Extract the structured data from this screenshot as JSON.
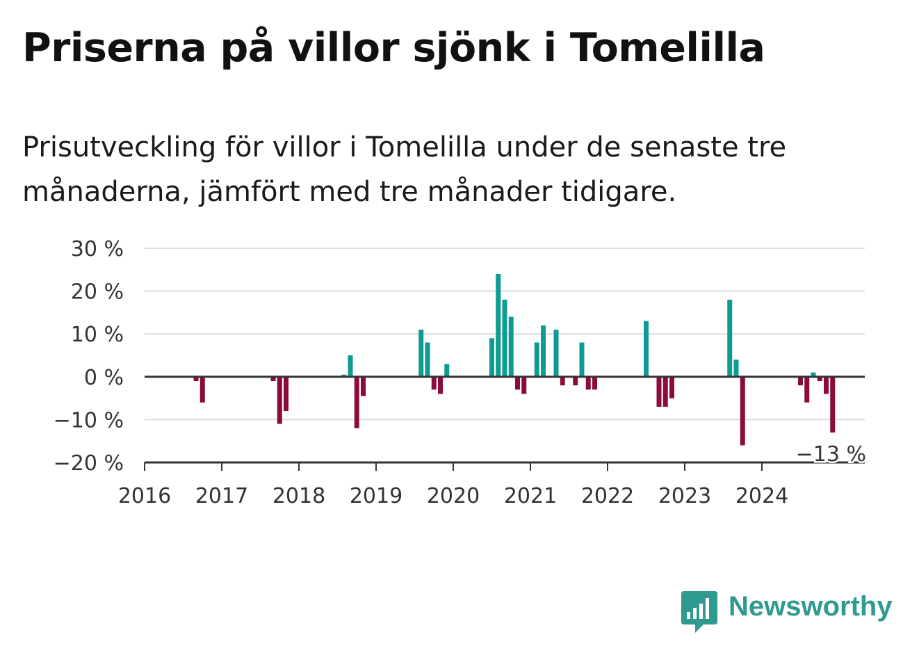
{
  "title": "Priserna på villor sjönk i Tomelilla",
  "subtitle": "Prisutveckling för villor i Tomelilla under de senaste tre månaderna, jämfört med tre månader tidigare.",
  "logo_text": "Newsworthy",
  "colors": {
    "positive": "#0d9b92",
    "negative": "#8c0a3c",
    "grid": "#dcdcdc",
    "axis": "#333333",
    "brand": "#2f9a8f"
  },
  "chart_data": {
    "type": "bar",
    "title": "Priserna på villor sjönk i Tomelilla",
    "ylabel": "",
    "xlabel": "",
    "ylim": [
      -20,
      30
    ],
    "y_ticks": [
      30,
      20,
      10,
      0,
      -10,
      -20
    ],
    "y_tick_labels": [
      "30 %",
      "20 %",
      "10 %",
      "0 %",
      "−10 %",
      "−20 %"
    ],
    "x_ticks": [
      "2016",
      "2017",
      "2018",
      "2019",
      "2020",
      "2021",
      "2022",
      "2023",
      "2024"
    ],
    "x_range": [
      "2016-01",
      "2025-05"
    ],
    "grid": true,
    "annotation": {
      "x": "2024-11",
      "value": -13,
      "text": "−13 %"
    },
    "x": [
      "2016-09",
      "2016-10",
      "2017-09",
      "2017-10",
      "2017-11",
      "2018-08",
      "2018-09",
      "2018-10",
      "2018-11",
      "2019-08",
      "2019-09",
      "2019-10",
      "2019-11",
      "2019-12",
      "2020-07",
      "2020-08",
      "2020-09",
      "2020-10",
      "2020-11",
      "2020-12",
      "2021-02",
      "2021-03",
      "2021-05",
      "2021-06",
      "2021-08",
      "2021-09",
      "2021-10",
      "2021-11",
      "2022-07",
      "2022-09",
      "2022-10",
      "2022-11",
      "2023-08",
      "2023-09",
      "2023-10",
      "2024-07",
      "2024-08",
      "2024-09",
      "2024-10",
      "2024-11",
      "2024-12"
    ],
    "values": [
      -1,
      -6,
      -1,
      -11,
      -8,
      0.5,
      5,
      -12,
      -4.5,
      11,
      8,
      -3,
      -4,
      3,
      9,
      24,
      18,
      14,
      -3,
      -4,
      8,
      12,
      11,
      -2,
      -2,
      8,
      -3,
      -3,
      13,
      -7,
      -7,
      -5,
      18,
      4,
      -16,
      -2,
      -6,
      1,
      -1,
      -4,
      -13
    ]
  }
}
